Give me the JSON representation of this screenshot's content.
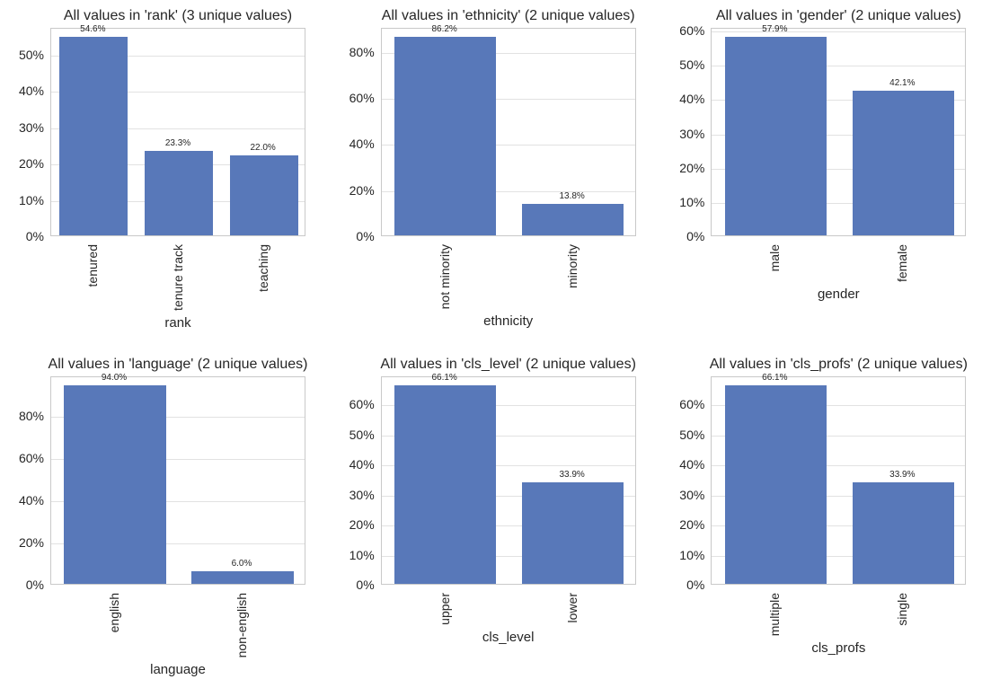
{
  "figure": {
    "background": "#ffffff",
    "bar_color": "#5878b9",
    "grid_color": "#e2e2e2",
    "spine_color": "#c9c9c9",
    "text_color": "#262626",
    "rows": 2,
    "cols": 3
  },
  "chart_data": [
    {
      "type": "bar",
      "title": "All values in 'rank' (3 unique values)",
      "xlabel": "rank",
      "ylabel": "",
      "categories": [
        "tenured",
        "tenure track",
        "teaching"
      ],
      "values": [
        54.6,
        23.3,
        22.0
      ],
      "bar_labels": [
        "54.6%",
        "23.3%",
        "22.0%"
      ],
      "yticks": [
        0,
        10,
        20,
        30,
        40,
        50
      ],
      "ytick_labels": [
        "0%",
        "10%",
        "20%",
        "30%",
        "40%",
        "50%"
      ],
      "ylim": [
        0,
        57.3
      ],
      "grid": true,
      "legend": "none"
    },
    {
      "type": "bar",
      "title": "All values in 'ethnicity' (2 unique values)",
      "xlabel": "ethnicity",
      "ylabel": "",
      "categories": [
        "not minority",
        "minority"
      ],
      "values": [
        86.2,
        13.8
      ],
      "bar_labels": [
        "86.2%",
        "13.8%"
      ],
      "yticks": [
        0,
        20,
        40,
        60,
        80
      ],
      "ytick_labels": [
        "0%",
        "20%",
        "40%",
        "60%",
        "80%"
      ],
      "ylim": [
        0,
        90.5
      ],
      "grid": true,
      "legend": "none"
    },
    {
      "type": "bar",
      "title": "All values in 'gender' (2 unique values)",
      "xlabel": "gender",
      "ylabel": "",
      "categories": [
        "male",
        "female"
      ],
      "values": [
        57.9,
        42.1
      ],
      "bar_labels": [
        "57.9%",
        "42.1%"
      ],
      "yticks": [
        0,
        10,
        20,
        30,
        40,
        50,
        60
      ],
      "ytick_labels": [
        "0%",
        "10%",
        "20%",
        "30%",
        "40%",
        "50%",
        "60%"
      ],
      "ylim": [
        0,
        60.8
      ],
      "grid": true,
      "legend": "none"
    },
    {
      "type": "bar",
      "title": "All values in 'language' (2 unique values)",
      "xlabel": "language",
      "ylabel": "",
      "categories": [
        "english",
        "non-english"
      ],
      "values": [
        94.0,
        6.0
      ],
      "bar_labels": [
        "94.0%",
        "6.0%"
      ],
      "yticks": [
        0,
        20,
        40,
        60,
        80
      ],
      "ytick_labels": [
        "0%",
        "20%",
        "40%",
        "60%",
        "80%"
      ],
      "ylim": [
        0,
        98.7
      ],
      "grid": true,
      "legend": "none"
    },
    {
      "type": "bar",
      "title": "All values in 'cls_level' (2 unique values)",
      "xlabel": "cls_level",
      "ylabel": "",
      "categories": [
        "upper",
        "lower"
      ],
      "values": [
        66.1,
        33.9
      ],
      "bar_labels": [
        "66.1%",
        "33.9%"
      ],
      "yticks": [
        0,
        10,
        20,
        30,
        40,
        50,
        60
      ],
      "ytick_labels": [
        "0%",
        "10%",
        "20%",
        "30%",
        "40%",
        "50%",
        "60%"
      ],
      "ylim": [
        0,
        69.4
      ],
      "grid": true,
      "legend": "none"
    },
    {
      "type": "bar",
      "title": "All values in 'cls_profs' (2 unique values)",
      "xlabel": "cls_profs",
      "ylabel": "",
      "categories": [
        "multiple",
        "single"
      ],
      "values": [
        66.1,
        33.9
      ],
      "bar_labels": [
        "66.1%",
        "33.9%"
      ],
      "yticks": [
        0,
        10,
        20,
        30,
        40,
        50,
        60
      ],
      "ytick_labels": [
        "0%",
        "10%",
        "20%",
        "30%",
        "40%",
        "50%",
        "60%"
      ],
      "ylim": [
        0,
        69.4
      ],
      "grid": true,
      "legend": "none"
    }
  ]
}
